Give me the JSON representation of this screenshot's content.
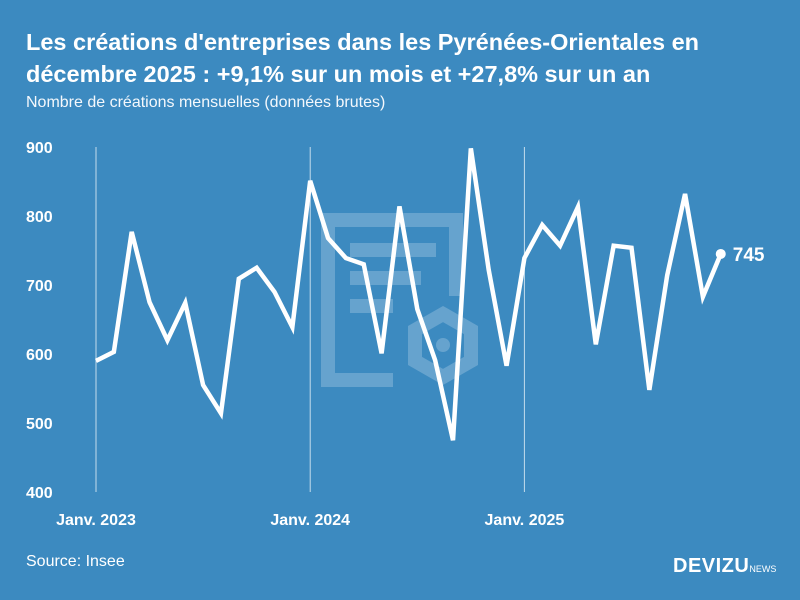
{
  "title": "Les créations d'entreprises dans les Pyrénées-Orientales en décembre 2025 : +9,1% sur un mois et +27,8% sur un an",
  "subtitle": "Nombre de créations mensuelles (données brutes)",
  "source": "Source: Insee",
  "logo": {
    "main": "DEVIZU",
    "suffix": "NEWS"
  },
  "colors": {
    "background": "#3c8ac0",
    "line": "#ffffff"
  },
  "chart_data": {
    "type": "line",
    "title": "Les créations d'entreprises dans les Pyrénées-Orientales en décembre 2025 : +9,1% sur un mois et +27,8% sur un an",
    "subtitle": "Nombre de créations mensuelles (données brutes)",
    "x_start": "2023-01",
    "x_end": "2025-12",
    "x_ticks": [
      "Janv. 2023",
      "Janv. 2024",
      "Janv. 2025"
    ],
    "y_ticks": [
      400,
      500,
      600,
      700,
      800,
      900
    ],
    "ylim": [
      400,
      900
    ],
    "grid": "vertical lines at January",
    "values": [
      590,
      603,
      777,
      675,
      620,
      674,
      555,
      514,
      709,
      725,
      690,
      639,
      851,
      768,
      739,
      730,
      601,
      814,
      665,
      591,
      475,
      898,
      722,
      583,
      739,
      787,
      757,
      813,
      614,
      757,
      754,
      548,
      714,
      832,
      683,
      745
    ],
    "last_label": "745"
  }
}
